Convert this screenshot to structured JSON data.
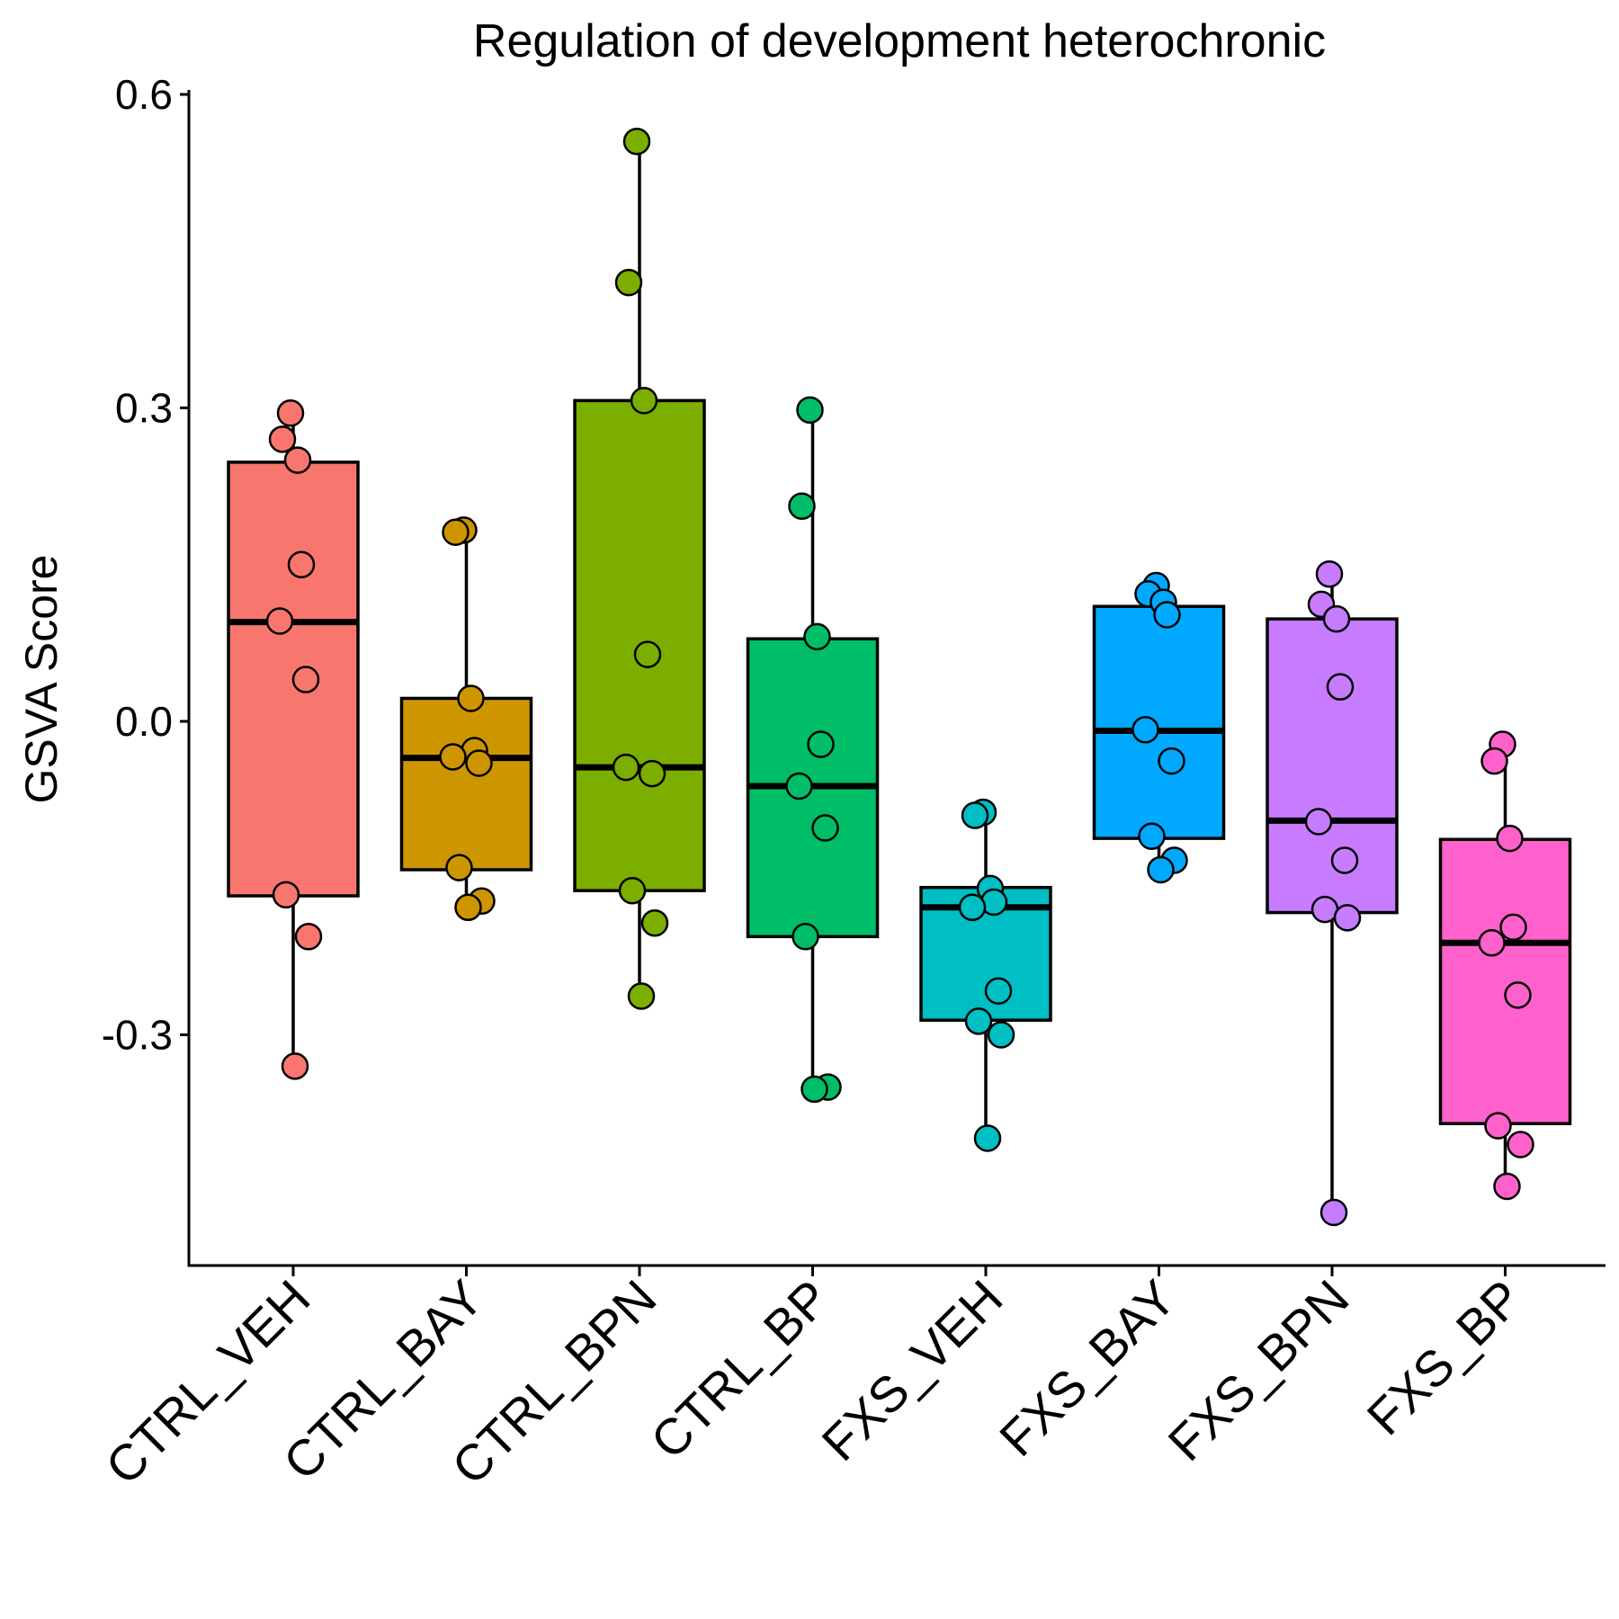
{
  "chart_data": {
    "type": "box",
    "title": "Regulation of development heterochronic",
    "xlabel": "",
    "ylabel": "GSVA Score",
    "ylim": [
      -0.52,
      0.6
    ],
    "yticks": [
      "0.6",
      "0.3",
      "0.0",
      "-0.3"
    ],
    "ytick_values": [
      0.6,
      0.3,
      0.0,
      -0.3
    ],
    "grid": false,
    "legend": "none",
    "categories": [
      "CTRL_VEH",
      "CTRL_BAY",
      "CTRL_BPN",
      "CTRL_BP",
      "FXS_VEH",
      "FXS_BAY",
      "FXS_BPN",
      "FXS_BP"
    ],
    "colors": [
      "#F8766D",
      "#CD9600",
      "#7CAE00",
      "#00BE67",
      "#00BFC4",
      "#00A9FF",
      "#C77CFF",
      "#FF61CC"
    ],
    "boxes": [
      {
        "whisker_low": -0.33,
        "q1": -0.167,
        "median": 0.095,
        "q3": 0.248,
        "whisker_high": 0.295
      },
      {
        "whisker_low": -0.177,
        "q1": -0.142,
        "median": -0.035,
        "q3": 0.022,
        "whisker_high": 0.181
      },
      {
        "whisker_low": -0.263,
        "q1": -0.162,
        "median": -0.044,
        "q3": 0.307,
        "whisker_high": 0.555
      },
      {
        "whisker_low": -0.352,
        "q1": -0.206,
        "median": -0.062,
        "q3": 0.079,
        "whisker_high": 0.298
      },
      {
        "whisker_low": -0.4,
        "q1": -0.286,
        "median": -0.178,
        "q3": -0.159,
        "whisker_high": -0.088
      },
      {
        "whisker_low": -0.142,
        "q1": -0.112,
        "median": -0.009,
        "q3": 0.11,
        "whisker_high": 0.129
      },
      {
        "whisker_low": -0.47,
        "q1": -0.183,
        "median": -0.095,
        "q3": 0.098,
        "whisker_high": 0.141
      },
      {
        "whisker_low": -0.447,
        "q1": -0.385,
        "median": -0.212,
        "q3": -0.113,
        "whisker_high": -0.022
      }
    ],
    "points": [
      [
        0.295,
        0.27,
        0.25,
        0.15,
        0.096,
        0.04,
        -0.166,
        -0.206,
        -0.33
      ],
      [
        0.183,
        0.181,
        0.022,
        -0.028,
        -0.034,
        -0.04,
        -0.14,
        -0.172,
        -0.178
      ],
      [
        0.555,
        0.42,
        0.307,
        0.064,
        -0.044,
        -0.05,
        -0.162,
        -0.193,
        -0.263
      ],
      [
        0.298,
        0.206,
        0.081,
        -0.022,
        -0.062,
        -0.102,
        -0.206,
        -0.35,
        -0.352
      ],
      [
        -0.087,
        -0.09,
        -0.16,
        -0.173,
        -0.178,
        -0.258,
        -0.287,
        -0.3,
        -0.399
      ],
      [
        0.13,
        0.122,
        0.114,
        0.102,
        -0.008,
        -0.038,
        -0.11,
        -0.133,
        -0.142
      ],
      [
        0.141,
        0.112,
        0.098,
        0.033,
        -0.096,
        -0.133,
        -0.18,
        -0.188,
        -0.47
      ],
      [
        -0.022,
        -0.038,
        -0.112,
        -0.197,
        -0.212,
        -0.262,
        -0.387,
        -0.405,
        -0.445
      ]
    ]
  }
}
